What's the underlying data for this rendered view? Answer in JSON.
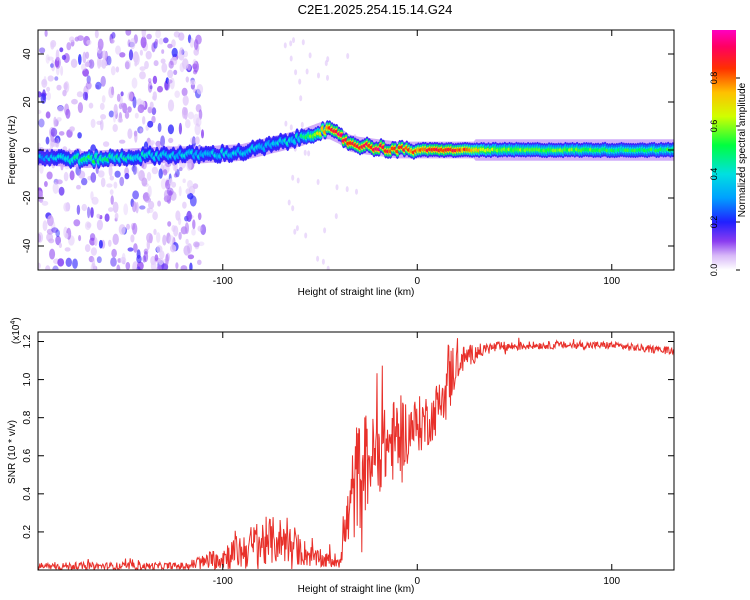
{
  "title": "C2E1.2025.254.15.14.G24",
  "chart_data": [
    {
      "type": "heatmap",
      "name": "spectrogram",
      "xlabel": "Height of straight line (km)",
      "ylabel": "Frequency (Hz)",
      "xlim": [
        -195,
        132
      ],
      "ylim": [
        -50,
        50
      ],
      "xticks": [
        -100,
        0,
        100
      ],
      "xtick_labels": [
        "-100",
        "0",
        "100"
      ],
      "yticks": [
        -40,
        -20,
        0,
        20,
        40
      ],
      "ytick_labels": [
        "-40",
        "-20",
        "0",
        "20",
        "40"
      ],
      "colorbar": {
        "label": "Normalized spectral amplitude",
        "range": [
          0,
          1
        ],
        "ticks": [
          0.0,
          0.2,
          0.4,
          0.6,
          0.8
        ],
        "tick_labels": [
          "0.0",
          "0.2",
          "0.4",
          "0.6",
          "0.8"
        ]
      },
      "ridge": {
        "x": [
          -190,
          -170,
          -150,
          -130,
          -110,
          -90,
          -70,
          -60,
          -50,
          -45,
          -40,
          -35,
          -30,
          -20,
          -10,
          0,
          10,
          20,
          40,
          60,
          80,
          100,
          132
        ],
        "freq": [
          -3,
          -4,
          -3,
          -2,
          -2,
          -1,
          3,
          5,
          8,
          8,
          6,
          3,
          2,
          1,
          0,
          0,
          0,
          0,
          0,
          0,
          0,
          0,
          0
        ],
        "amplitude": [
          0.3,
          0.5,
          0.4,
          0.35,
          0.35,
          0.35,
          0.35,
          0.4,
          0.7,
          0.85,
          0.9,
          0.9,
          0.85,
          0.9,
          0.85,
          0.8,
          0.9,
          0.85,
          0.6,
          0.55,
          0.55,
          0.5,
          0.5
        ]
      },
      "noise_extent": [
        -195,
        -110
      ]
    },
    {
      "type": "line",
      "name": "snr",
      "xlabel": "Height of straight line (km)",
      "ylabel": "SNR (10 * v/v)",
      "y_multiplier": "(x10",
      "y_multiplier_exp": "4",
      "xlim": [
        -195,
        132
      ],
      "ylim": [
        0,
        1.25
      ],
      "xticks": [
        -100,
        0,
        100
      ],
      "xtick_labels": [
        "-100",
        "0",
        "100"
      ],
      "yticks": [
        0.2,
        0.4,
        0.6,
        0.8,
        1.0,
        1.2
      ],
      "ytick_labels": [
        "0.2",
        "0.4",
        "0.6",
        "0.8",
        "1.0",
        "1.2"
      ],
      "color": "#e8302a",
      "series": [
        {
          "name": "SNR",
          "x": [
            -195,
            -170,
            -150,
            -130,
            -120,
            -110,
            -100,
            -90,
            -80,
            -70,
            -60,
            -50,
            -40,
            -36,
            -32,
            -28,
            -24,
            -20,
            -16,
            -12,
            -8,
            -4,
            0,
            4,
            8,
            12,
            16,
            20,
            25,
            30,
            35,
            40,
            60,
            80,
            100,
            120,
            132
          ],
          "mean": [
            0.02,
            0.02,
            0.02,
            0.02,
            0.02,
            0.04,
            0.07,
            0.1,
            0.14,
            0.16,
            0.1,
            0.05,
            0.05,
            0.25,
            0.45,
            0.55,
            0.58,
            0.62,
            0.65,
            0.68,
            0.72,
            0.74,
            0.76,
            0.78,
            0.8,
            0.9,
            1.0,
            1.08,
            1.12,
            1.14,
            1.16,
            1.17,
            1.18,
            1.18,
            1.18,
            1.16,
            1.15
          ],
          "spread": [
            0.02,
            0.02,
            0.02,
            0.02,
            0.02,
            0.04,
            0.07,
            0.1,
            0.14,
            0.12,
            0.08,
            0.04,
            0.04,
            0.16,
            0.3,
            0.3,
            0.22,
            0.22,
            0.2,
            0.22,
            0.2,
            0.15,
            0.15,
            0.15,
            0.12,
            0.16,
            0.22,
            0.1,
            0.06,
            0.05,
            0.03,
            0.03,
            0.02,
            0.02,
            0.02,
            0.02,
            0.02
          ]
        }
      ]
    }
  ]
}
